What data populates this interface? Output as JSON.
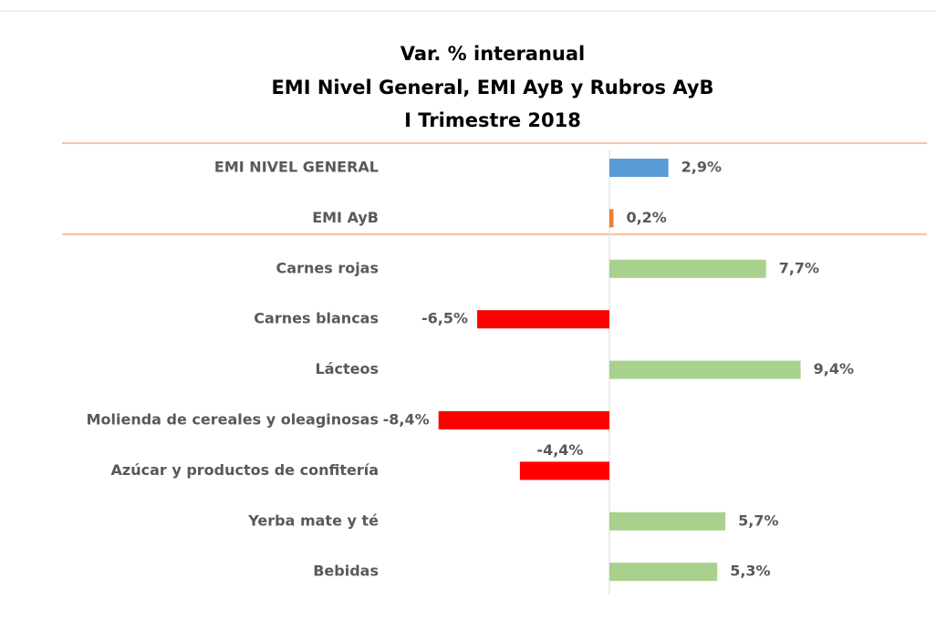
{
  "chart_data": {
    "type": "hbar",
    "title": [
      "Var. % interanual",
      "EMI Nivel General, EMI AyB y Rubros AyB",
      "I Trimestre 2018"
    ],
    "categories": [
      "EMI NIVEL GENERAL",
      "EMI AyB",
      "Carnes rojas",
      "Carnes blancas",
      "Lácteos",
      "Molienda de cereales y oleaginosas",
      "Azúcar y productos de confitería",
      "Yerba mate y té",
      "Bebidas"
    ],
    "values": [
      2.9,
      0.2,
      7.7,
      -6.5,
      9.4,
      -8.4,
      -4.4,
      5.7,
      5.3
    ],
    "value_labels": [
      "2,9%",
      "0,2%",
      "7,7%",
      "-6,5%",
      "9,4%",
      "-8,4%",
      "-4,4%",
      "5,7%",
      "5,3%"
    ],
    "colors": [
      "#5b9bd5",
      "#ed7d31",
      "#a9d18e",
      "#ff0000",
      "#a9d18e",
      "#ff0000",
      "#ff0000",
      "#a9d18e",
      "#a9d18e"
    ]
  }
}
